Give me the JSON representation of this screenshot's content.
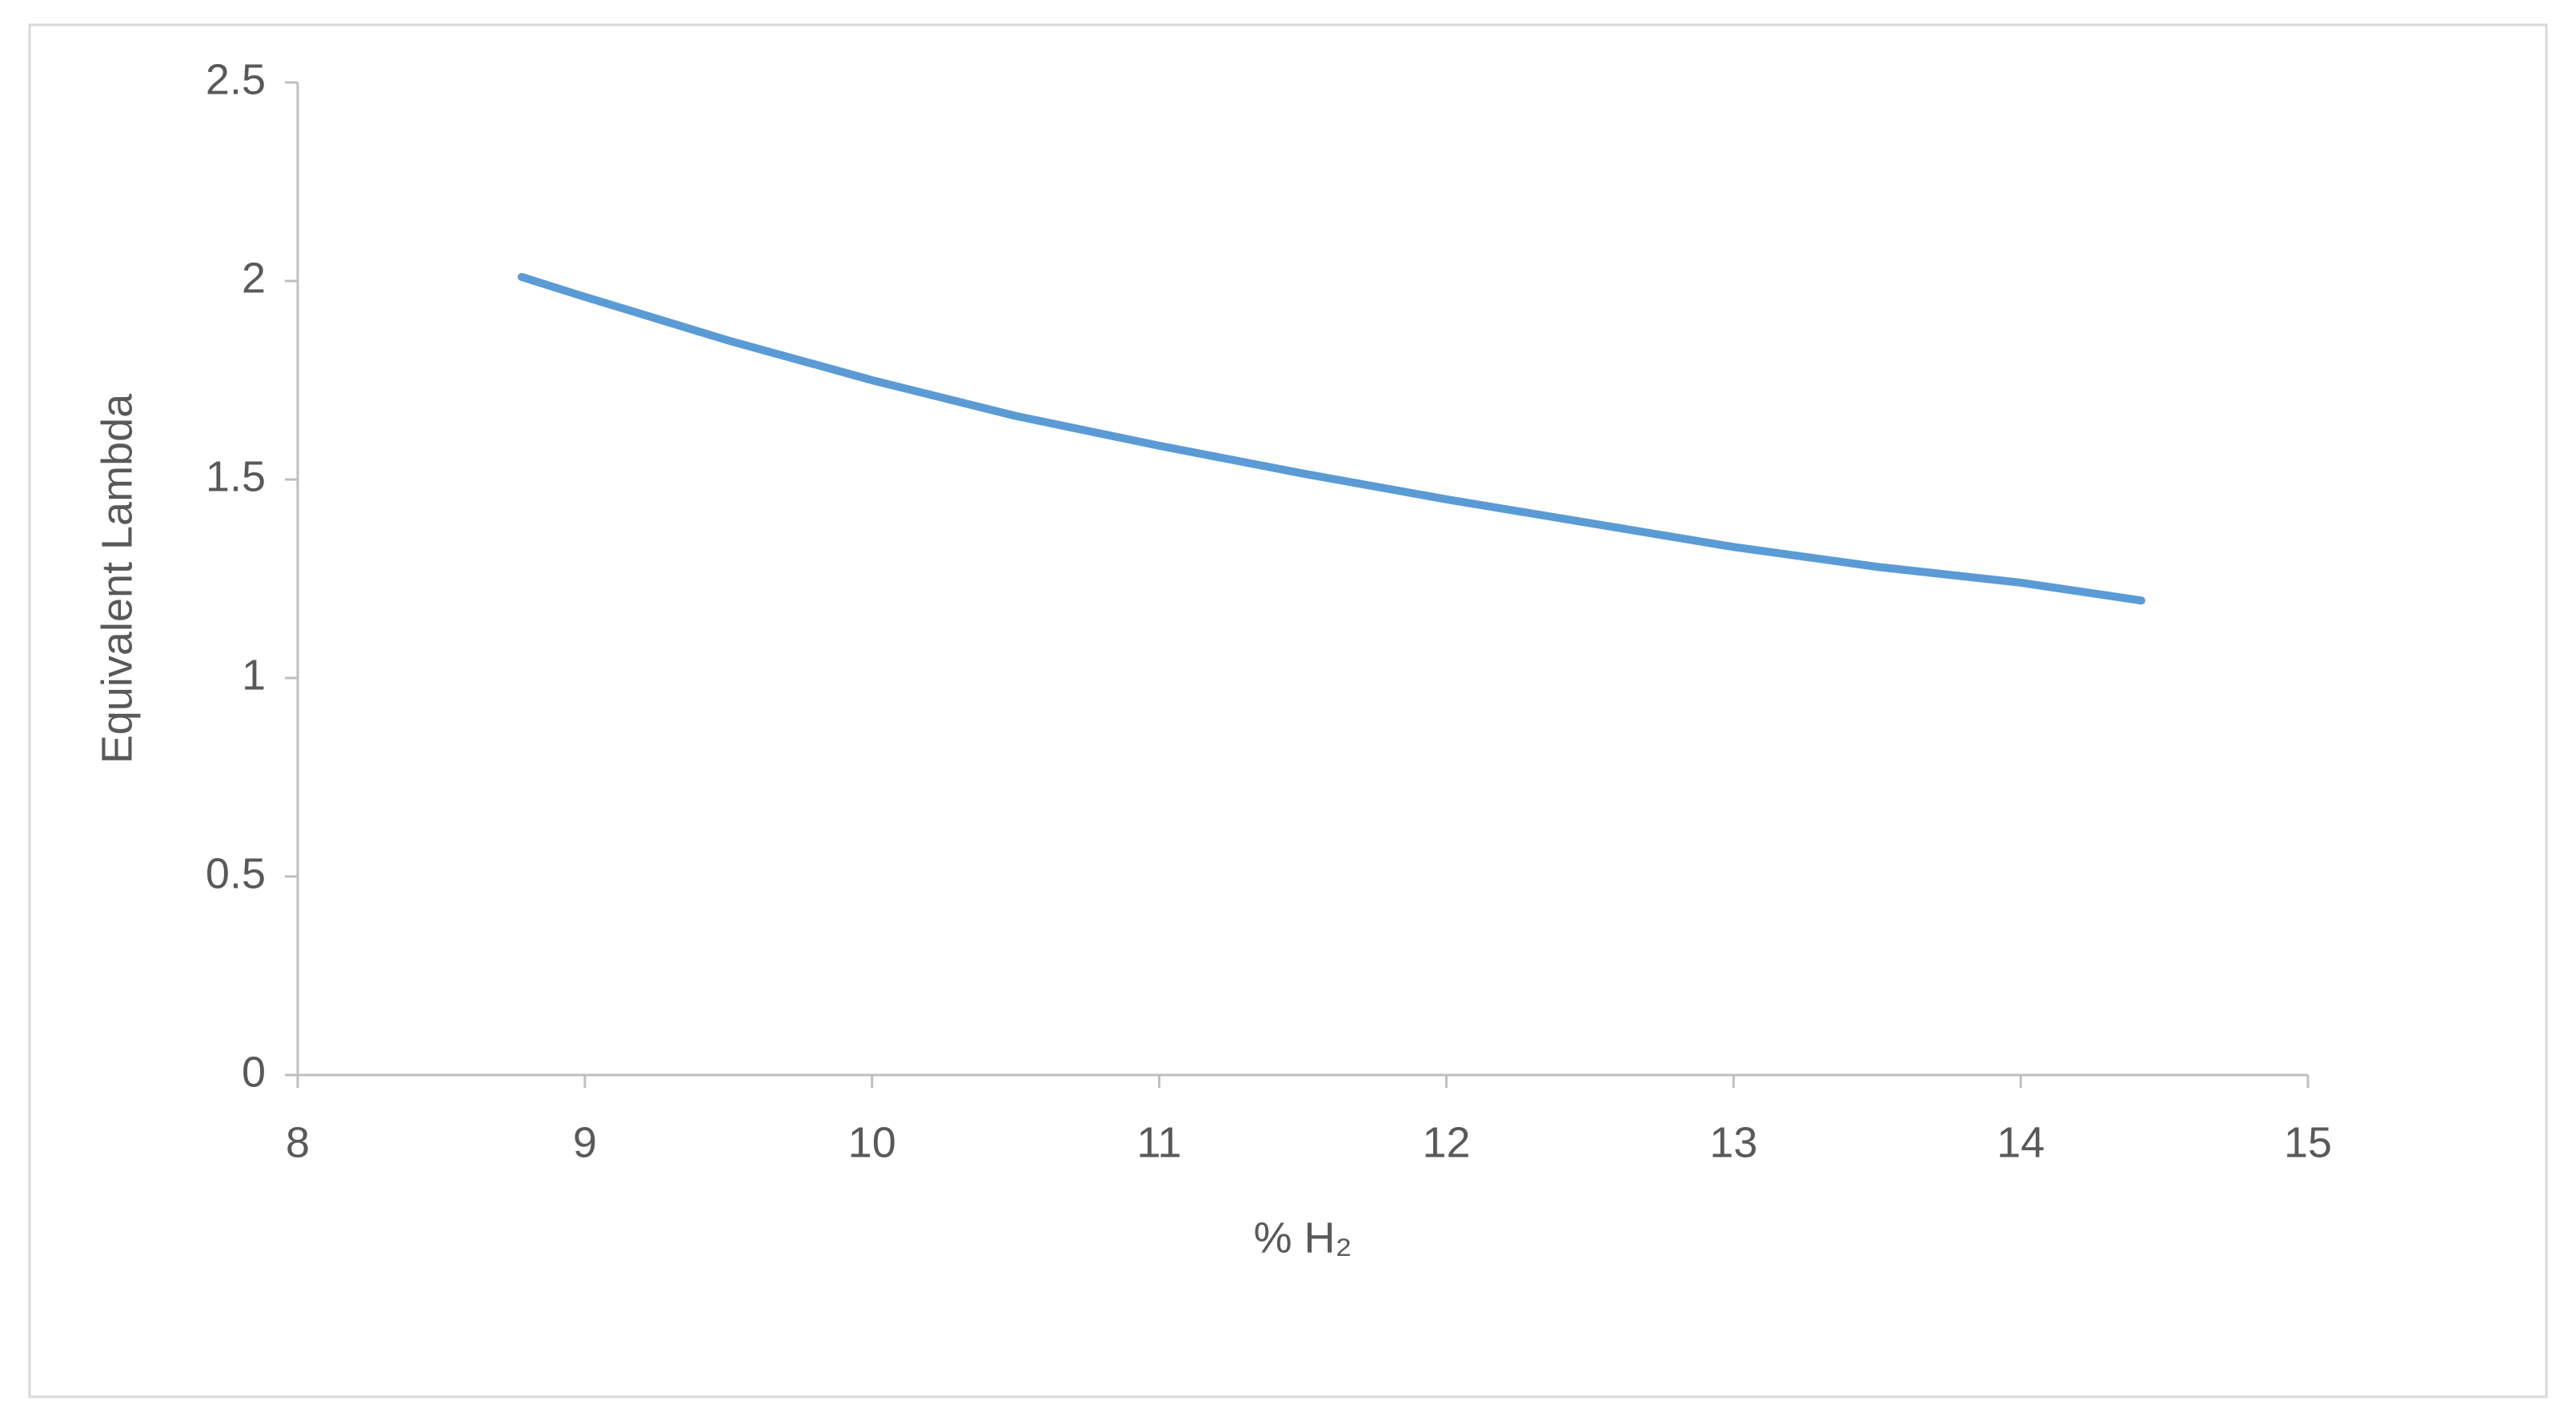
{
  "chart_data": {
    "type": "line",
    "x_label": "% H₂",
    "y_label": "Equivalent Lambda",
    "series": [
      {
        "name": "Equivalent Lambda",
        "color": "#5b9bd5",
        "x": [
          8.78,
          9.0,
          9.5,
          10.0,
          10.5,
          11.0,
          11.5,
          12.0,
          12.5,
          13.0,
          13.5,
          14.0,
          14.42
        ],
        "values": [
          2.01,
          1.96,
          1.85,
          1.75,
          1.66,
          1.585,
          1.515,
          1.45,
          1.39,
          1.33,
          1.28,
          1.24,
          1.195
        ]
      }
    ],
    "xlim": [
      8,
      15
    ],
    "xticks": [
      8,
      9,
      10,
      11,
      12,
      13,
      14,
      15
    ],
    "ylim": [
      0,
      2.5
    ],
    "yticks": [
      0,
      0.5,
      1,
      1.5,
      2,
      2.5
    ],
    "grid": false
  }
}
